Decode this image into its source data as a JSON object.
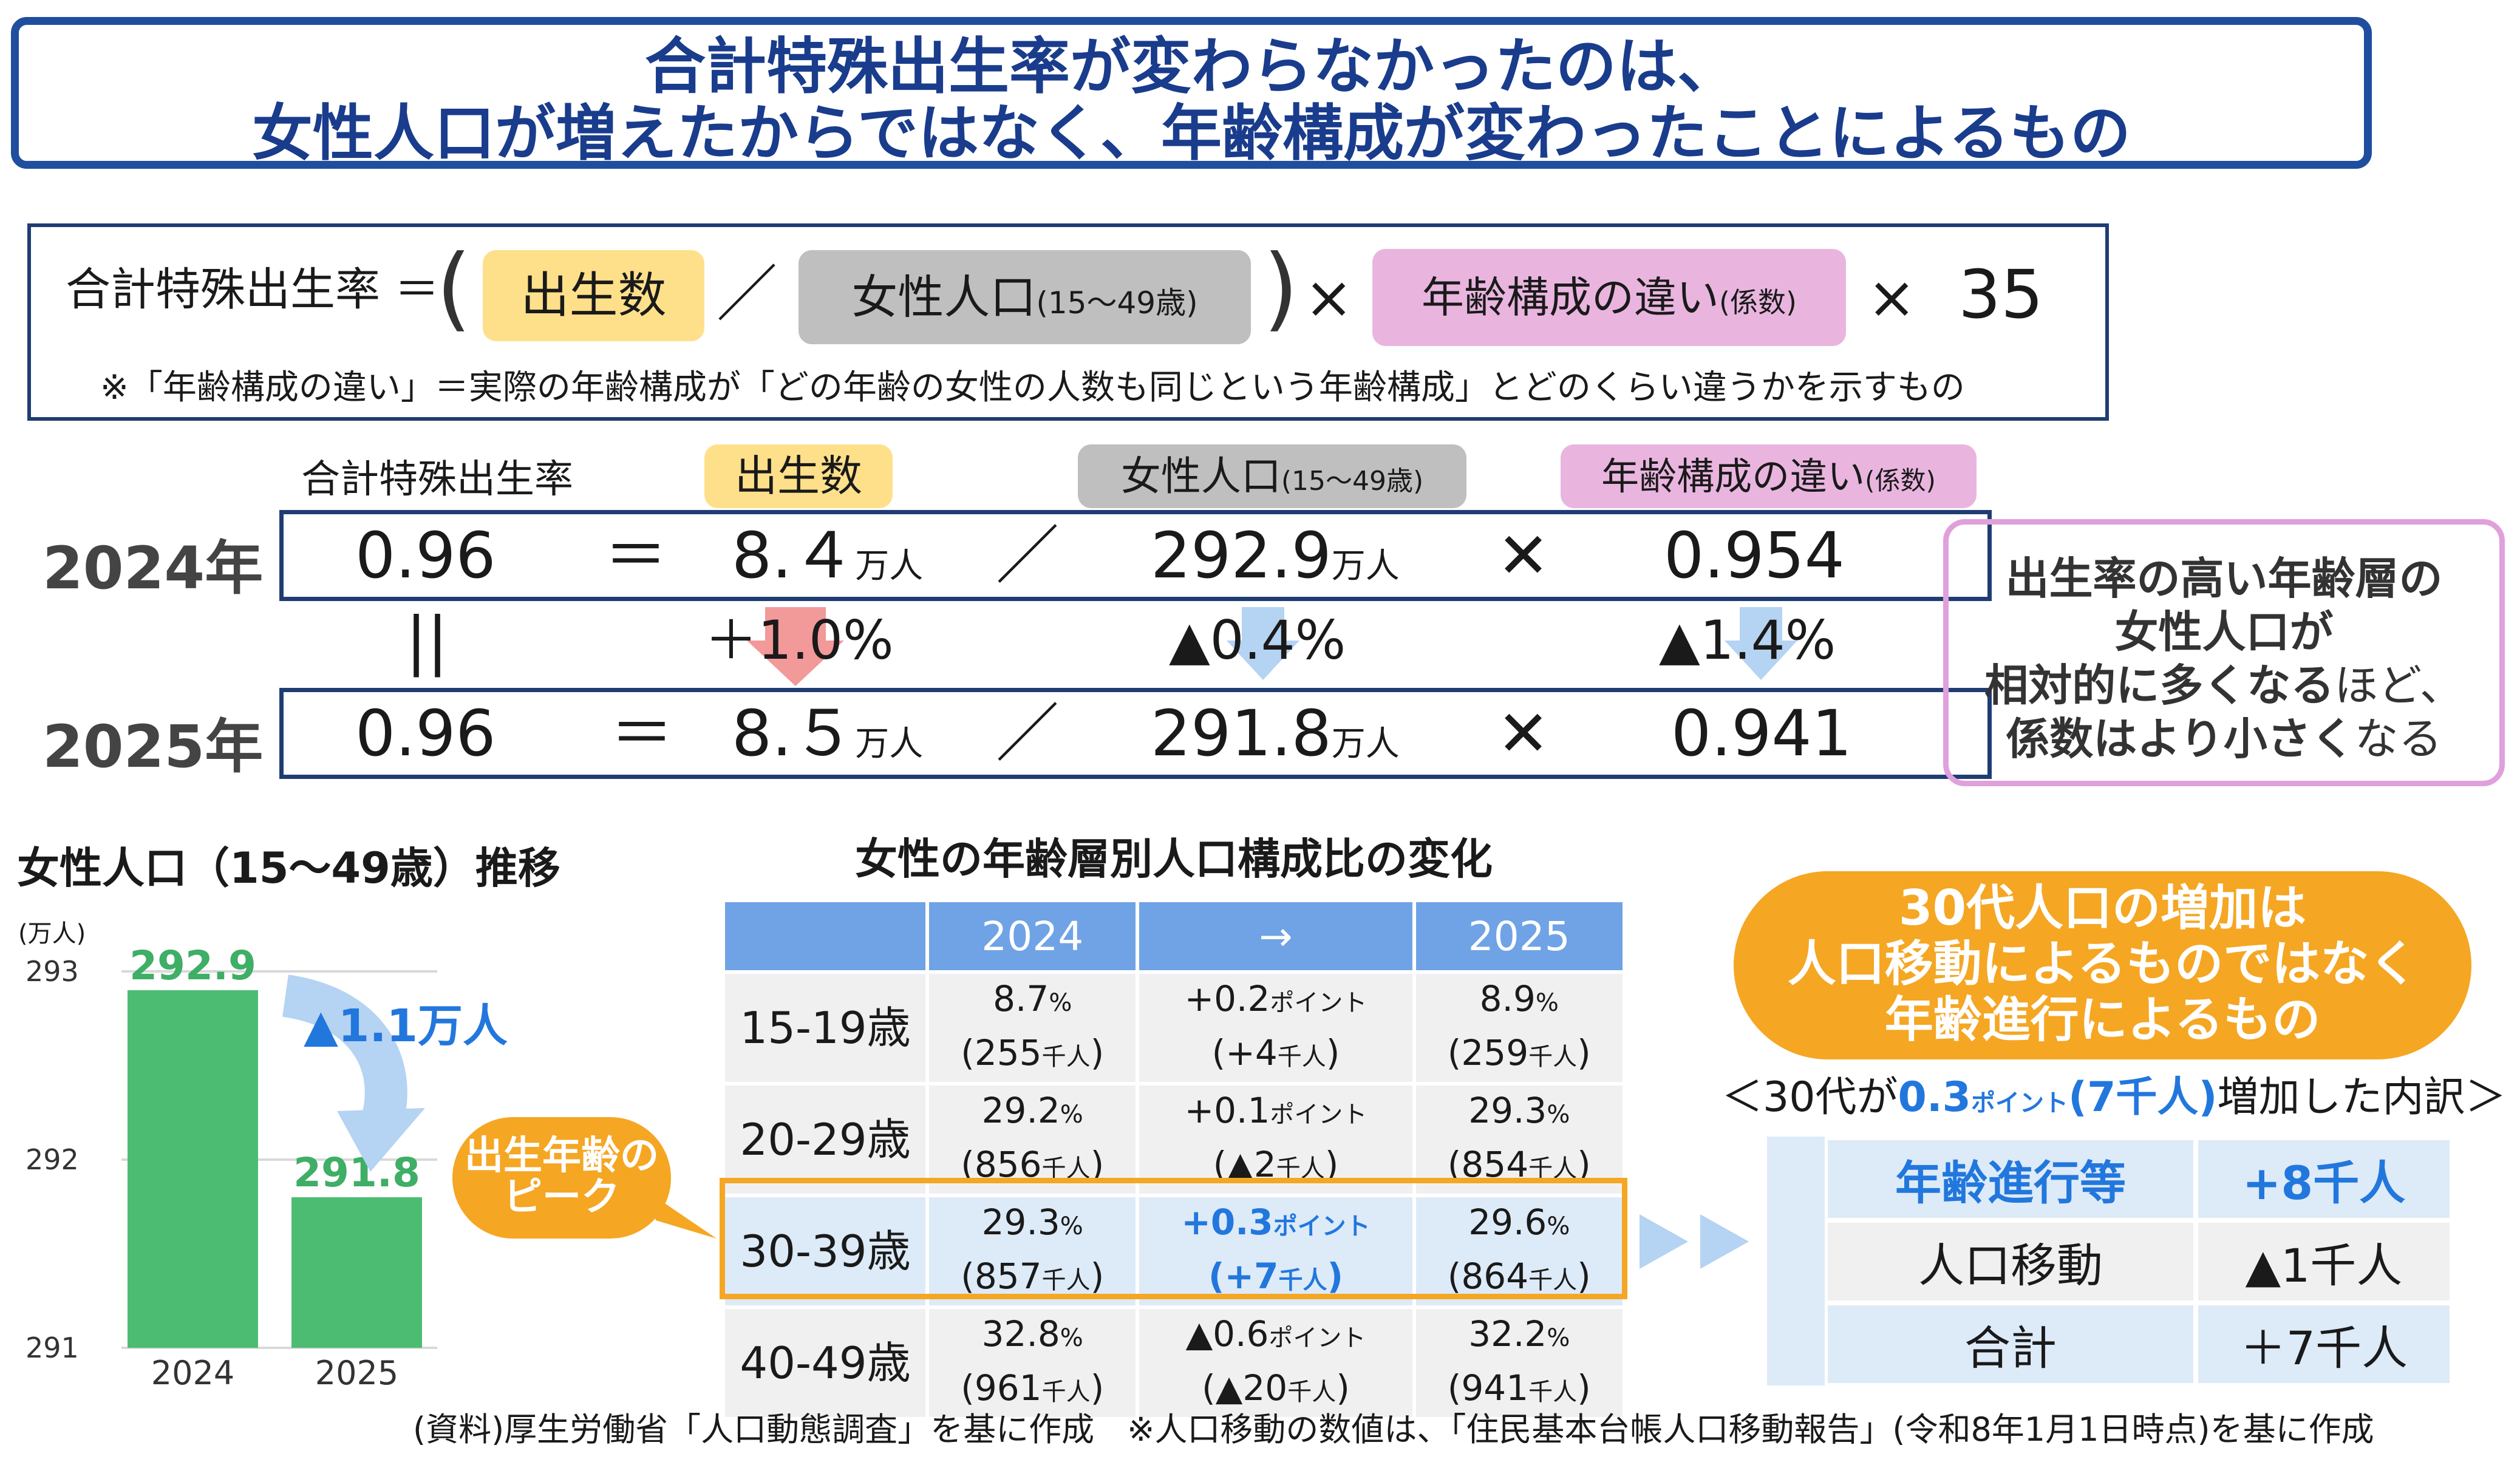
{
  "title": {
    "line1": "合計特殊出生率が変わらなかったのは、",
    "line2": "女性人口が増えたからではなく、年齢構成が変わったことによるもの"
  },
  "formula": {
    "lhs": "合計特殊出生率 ＝",
    "births": "出生数",
    "slash": "／",
    "female_pop": "女性人口",
    "female_pop_range": "(15～49歳)",
    "times": "×",
    "age_comp": "年齢構成の違い",
    "age_comp_coef": "(係数)",
    "constant": "35",
    "note": "※「年齢構成の違い」＝実際の年齢構成が「どの年齢の女性の人数も同じという年齢構成」とどのくらい違うかを示すもの"
  },
  "compare": {
    "col_tfr": "合計特殊出生率",
    "col_births": "出生数",
    "col_pop": "女性人口",
    "col_pop_range": "(15～49歳)",
    "col_comp": "年齢構成の違い",
    "col_comp_coef": "(係数)",
    "unit_man": "万人",
    "equals": "＝",
    "slash": "／",
    "times": "✕",
    "eq_mark": "||",
    "rows": [
      {
        "year": "2024年",
        "tfr": "0.96",
        "births": "8.４",
        "pop": "292.9",
        "coef": "0.954"
      },
      {
        "year": "2025年",
        "tfr": "0.96",
        "births": "8.５",
        "pop": "291.8",
        "coef": "0.941"
      }
    ],
    "changes": {
      "births": "＋1.0%",
      "pop": "▲0.4%",
      "coef": "▲1.4%"
    }
  },
  "callout_coef": {
    "line1": "出生率の高い年齢層の",
    "line2": "女性人口が",
    "line3a": "相対的に多くなる",
    "line3b": "ほど、",
    "line4a": "係数はより小さく",
    "line4b": "なる"
  },
  "bar_section": {
    "title": "女性人口（15～49歳）推移",
    "arrow_label": "▲1.1万人"
  },
  "chart_data": {
    "type": "bar",
    "categories": [
      "2024",
      "2025"
    ],
    "values": [
      292.9,
      291.8
    ],
    "title": "女性人口（15～49歳）推移",
    "ylabel": "(万人)",
    "ylim": [
      291,
      293
    ],
    "yticks": [
      "291",
      "292",
      "293"
    ],
    "bar_color": "#4cbc72",
    "label_color": "#3fae66"
  },
  "age_table": {
    "title": "女性の年齢層別人口構成比の変化",
    "headers": [
      "2024",
      "→",
      "2025"
    ],
    "pct": "%",
    "point": "ポイント",
    "thousand": "千人",
    "rows": [
      {
        "age": "15-19歳",
        "v24": "8.7",
        "n24": "255",
        "chg": "+0.2",
        "chn": "+4",
        "v25": "8.9",
        "n25": "259"
      },
      {
        "age": "20-29歳",
        "v24": "29.2",
        "n24": "856",
        "chg": "+0.1",
        "chn": "▲2",
        "v25": "29.3",
        "n25": "854"
      },
      {
        "age": "30-39歳",
        "v24": "29.3",
        "n24": "857",
        "chg": "+0.3",
        "chn": "+7",
        "v25": "29.6",
        "n25": "864"
      },
      {
        "age": "40-49歳",
        "v24": "32.8",
        "n24": "961",
        "chg": "▲0.6",
        "chn": "▲20",
        "v25": "32.2",
        "n25": "941"
      }
    ]
  },
  "peak_bubble": {
    "line1": "出生年齢の",
    "line2": "ピーク"
  },
  "orange_callout": {
    "line1": "30代人口の増加は",
    "line2": "人口移動によるものではなく",
    "line3": "年齢進行によるもの"
  },
  "breakdown": {
    "heading_pre": "＜30代が",
    "heading_num": "0.3",
    "heading_unit": "ポイント",
    "heading_mid": "(7千人)",
    "heading_post": "増加した内訳＞",
    "rows": [
      {
        "label": "年齢進行等",
        "value": "+8千人"
      },
      {
        "label": "人口移動",
        "value": "▲1千人"
      },
      {
        "label": "合計",
        "value": "＋7千人"
      }
    ]
  },
  "source": "(資料)厚生労働省「人口動態調査」を基に作成　※人口移動の数値は、「住民基本台帳人口移動報告」(令和8年1月1日時点)を基に作成",
  "colors": {
    "navy": "#1f4e9e",
    "orange": "#f5a623",
    "pink_border": "#e0a0dc",
    "blue": "#2277dd",
    "green": "#4cbc72"
  }
}
